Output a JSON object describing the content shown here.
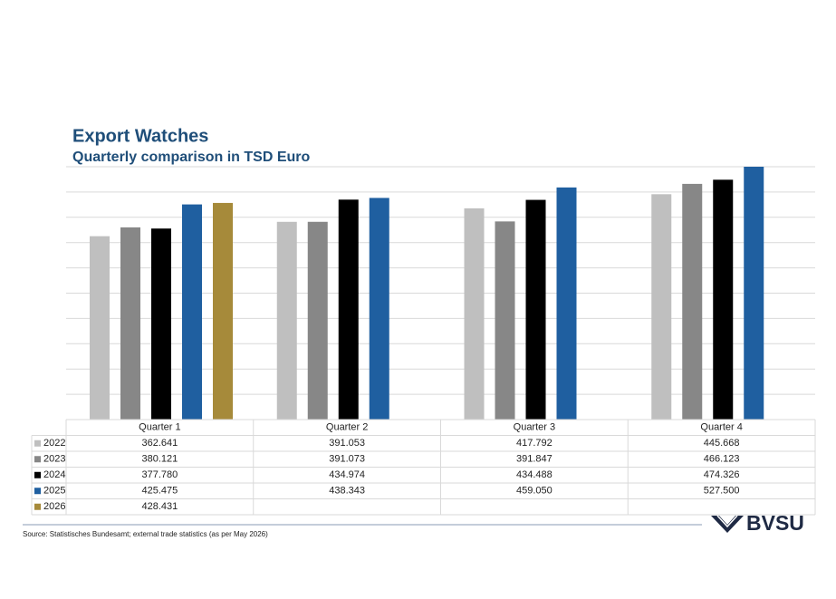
{
  "chart_data": {
    "type": "bar",
    "title": "Export Watches",
    "subtitle": "Quarterly comparison in TSD Euro",
    "categories": [
      "Quarter 1",
      "Quarter 2",
      "Quarter 3",
      "Quarter 4"
    ],
    "series": [
      {
        "name": "2022",
        "color": "#bfbfbf",
        "values": [
          362641,
          391053,
          417792,
          445668
        ],
        "value_labels": [
          "362.641",
          "391.053",
          "417.792",
          "445.668"
        ]
      },
      {
        "name": "2023",
        "color": "#878787",
        "values": [
          380121,
          391073,
          391847,
          466123
        ],
        "value_labels": [
          "380.121",
          "391.073",
          "391.847",
          "466.123"
        ]
      },
      {
        "name": "2024",
        "color": "#000000",
        "values": [
          377780,
          434974,
          434488,
          474326
        ],
        "value_labels": [
          "377.780",
          "434.974",
          "434.488",
          "474.326"
        ]
      },
      {
        "name": "2025",
        "color": "#1f5fa0",
        "values": [
          425475,
          438343,
          459050,
          527500
        ],
        "value_labels": [
          "425.475",
          "438.343",
          "459.050",
          "527.500"
        ]
      },
      {
        "name": "2026",
        "color": "#a68a3a",
        "values": [
          428431,
          null,
          null,
          null
        ],
        "value_labels": [
          "428.431",
          null,
          null,
          null
        ]
      }
    ],
    "ylim": [
      0,
      500000
    ],
    "yticks": [
      0,
      50000,
      100000,
      150000,
      200000,
      250000,
      300000,
      350000,
      400000,
      450000,
      500000
    ],
    "grid": true,
    "source": "Source: Statistisches Bundesamt; external trade statistics (as per May 2026)",
    "logo": "BVSU"
  }
}
